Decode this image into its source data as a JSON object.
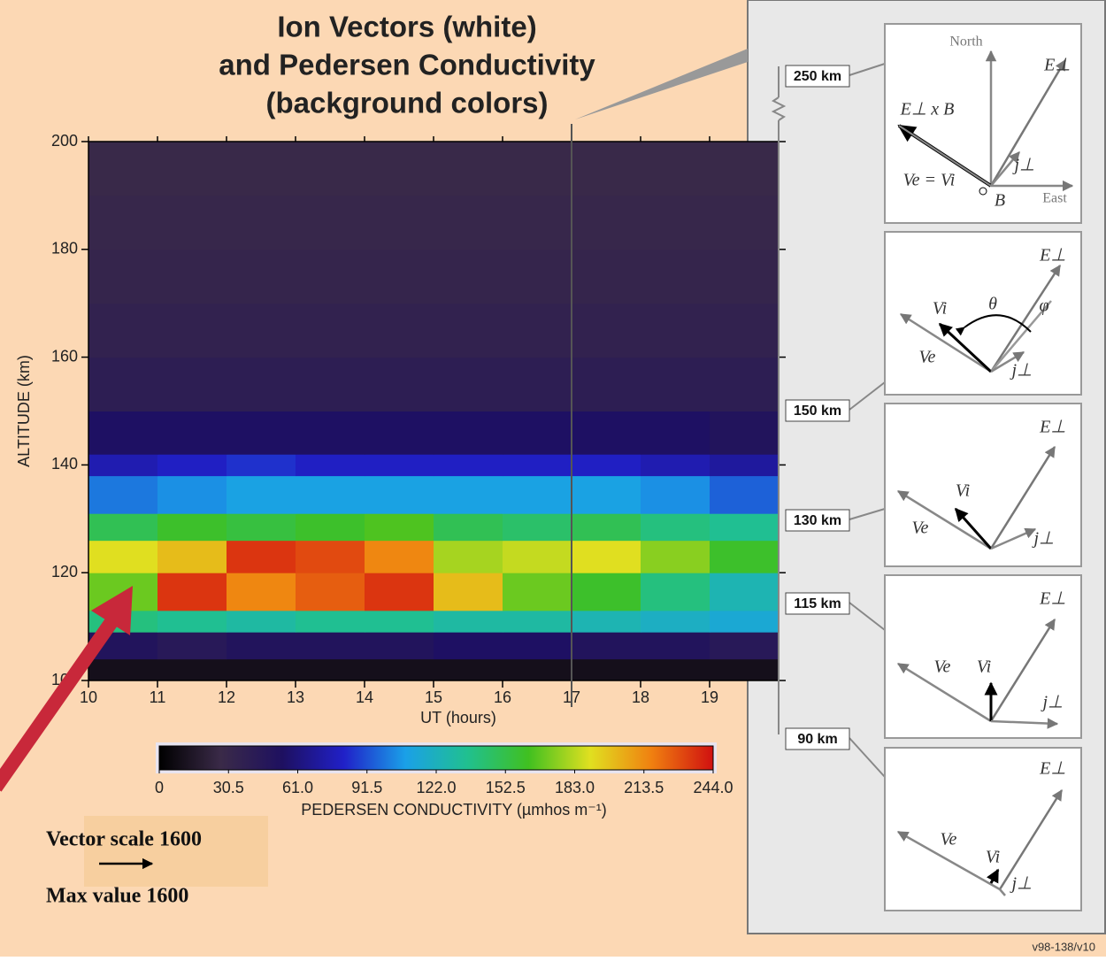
{
  "chart_data": {
    "type": "heatmap",
    "title": [
      "Ion Vectors (white)",
      "and Pedersen Conductivity",
      "(background colors)"
    ],
    "x_label": "UT (hours)",
    "y_label": "ALTITUDE (km)",
    "xbins": [
      10,
      11,
      12,
      13,
      14,
      15,
      16,
      17,
      18,
      19,
      20
    ],
    "ybins": [
      100,
      104,
      109,
      113,
      120,
      126,
      131,
      138,
      142,
      150,
      160,
      170,
      180,
      190,
      200
    ],
    "values": [
      [
        10,
        10,
        10,
        10,
        10,
        10,
        10,
        10,
        10,
        10
      ],
      [
        50,
        45,
        50,
        50,
        50,
        55,
        55,
        50,
        50,
        45
      ],
      [
        140,
        135,
        130,
        135,
        135,
        130,
        130,
        125,
        120,
        115
      ],
      [
        170,
        235,
        215,
        225,
        235,
        200,
        170,
        160,
        140,
        125
      ],
      [
        190,
        200,
        235,
        230,
        215,
        180,
        185,
        190,
        175,
        160
      ],
      [
        150,
        160,
        155,
        160,
        165,
        150,
        145,
        150,
        140,
        135
      ],
      [
        100,
        105,
        110,
        110,
        110,
        110,
        110,
        110,
        105,
        95
      ],
      [
        75,
        80,
        85,
        80,
        80,
        80,
        80,
        80,
        75,
        70
      ],
      [
        55,
        55,
        55,
        55,
        55,
        55,
        55,
        55,
        55,
        50
      ],
      [
        40,
        40,
        40,
        40,
        40,
        40,
        40,
        40,
        40,
        40
      ],
      [
        35,
        35,
        35,
        35,
        35,
        35,
        35,
        35,
        35,
        35
      ],
      [
        32,
        32,
        32,
        32,
        32,
        32,
        32,
        32,
        32,
        32
      ],
      [
        30,
        30,
        30,
        30,
        30,
        30,
        30,
        30,
        30,
        30
      ],
      [
        28,
        28,
        28,
        28,
        28,
        28,
        28,
        28,
        28,
        28
      ]
    ],
    "xlim": [
      10,
      20
    ],
    "ylim": [
      100,
      200
    ],
    "xticks": [
      10,
      11,
      12,
      13,
      14,
      15,
      16,
      17,
      18,
      19
    ],
    "yticks": [
      100,
      120,
      140,
      160,
      180,
      200
    ],
    "marker_ut": 17,
    "colorbar_label": "PEDERSEN CONDUCTIVITY (µmhos m⁻¹)",
    "clim": [
      0,
      244
    ],
    "colorscale": [
      "#000000",
      "#3a2a48",
      "#1e1060",
      "#2020c8",
      "#1aa0e8",
      "#20c090",
      "#40c020",
      "#e0e020",
      "#f08010",
      "#d01010"
    ],
    "cticks": [
      0,
      30.5,
      {
        "value": 61,
        "label": "61.0"
      },
      91.5,
      {
        "value": 122,
        "label": "122.0"
      },
      152.5,
      {
        "value": 183,
        "label": "183.0"
      },
      213.5,
      {
        "value": 244,
        "label": "244.0"
      }
    ]
  },
  "diagram": {
    "altitudes": [
      "250 km",
      "150 km",
      "130 km",
      "115 km",
      "90 km"
    ],
    "panel1": {
      "north": "North",
      "east": "East",
      "e": "E⊥",
      "exb": "E⊥ x B",
      "vev": "Ve = Vi",
      "j": "j⊥",
      "b": "B"
    },
    "panel2": {
      "e": "E⊥",
      "vi": "Vi",
      "ve": "Ve",
      "j": "j⊥",
      "theta": "θ",
      "phi": "φ"
    },
    "panel3": {
      "e": "E⊥",
      "vi": "Vi",
      "ve": "Ve",
      "j": "j⊥"
    },
    "panel4": {
      "e": "E⊥",
      "vi": "Vi",
      "ve": "Ve",
      "j": "j⊥"
    },
    "panel5": {
      "e": "E⊥",
      "vi": "Vi",
      "ve": "Ve",
      "j": "j⊥"
    }
  },
  "scale_note": {
    "vector_scale": "Vector scale  1600",
    "max_value": "Max value 1600"
  },
  "footer": "v98-138/v10"
}
